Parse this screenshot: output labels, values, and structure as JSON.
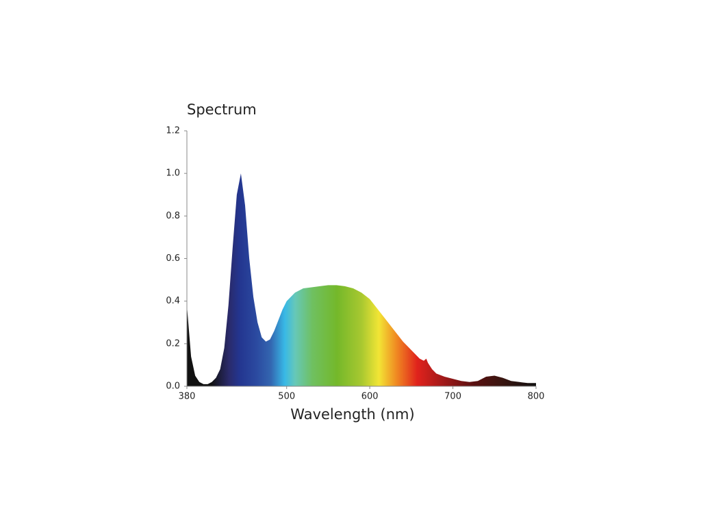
{
  "chart_data": {
    "type": "area",
    "title": "Spectrum",
    "x_label": "Wavelength (nm)",
    "x": [
      380,
      385,
      390,
      395,
      400,
      405,
      410,
      415,
      420,
      425,
      430,
      435,
      440,
      445,
      450,
      455,
      460,
      465,
      470,
      475,
      480,
      485,
      490,
      495,
      500,
      510,
      520,
      530,
      540,
      550,
      560,
      570,
      580,
      590,
      600,
      610,
      620,
      630,
      640,
      650,
      660,
      665,
      668,
      670,
      675,
      680,
      690,
      700,
      710,
      720,
      730,
      740,
      750,
      760,
      770,
      780,
      790,
      800
    ],
    "values": [
      0.38,
      0.14,
      0.05,
      0.02,
      0.01,
      0.01,
      0.02,
      0.04,
      0.08,
      0.18,
      0.38,
      0.65,
      0.9,
      1.0,
      0.85,
      0.6,
      0.42,
      0.3,
      0.23,
      0.21,
      0.22,
      0.26,
      0.31,
      0.36,
      0.4,
      0.44,
      0.46,
      0.465,
      0.47,
      0.475,
      0.475,
      0.47,
      0.46,
      0.44,
      0.41,
      0.36,
      0.31,
      0.26,
      0.21,
      0.17,
      0.13,
      0.12,
      0.13,
      0.11,
      0.08,
      0.06,
      0.045,
      0.035,
      0.025,
      0.02,
      0.025,
      0.045,
      0.05,
      0.04,
      0.025,
      0.02,
      0.015,
      0.015
    ],
    "xlim": [
      380,
      800
    ],
    "xticks": [
      380,
      500,
      600,
      700,
      800
    ],
    "ylim": [
      0,
      1.2
    ],
    "yticks": [
      {
        "value": 0,
        "label": "0.0"
      },
      0.2,
      0.4,
      0.6,
      0.8,
      {
        "value": 1,
        "label": "1.0"
      },
      1.2
    ]
  }
}
